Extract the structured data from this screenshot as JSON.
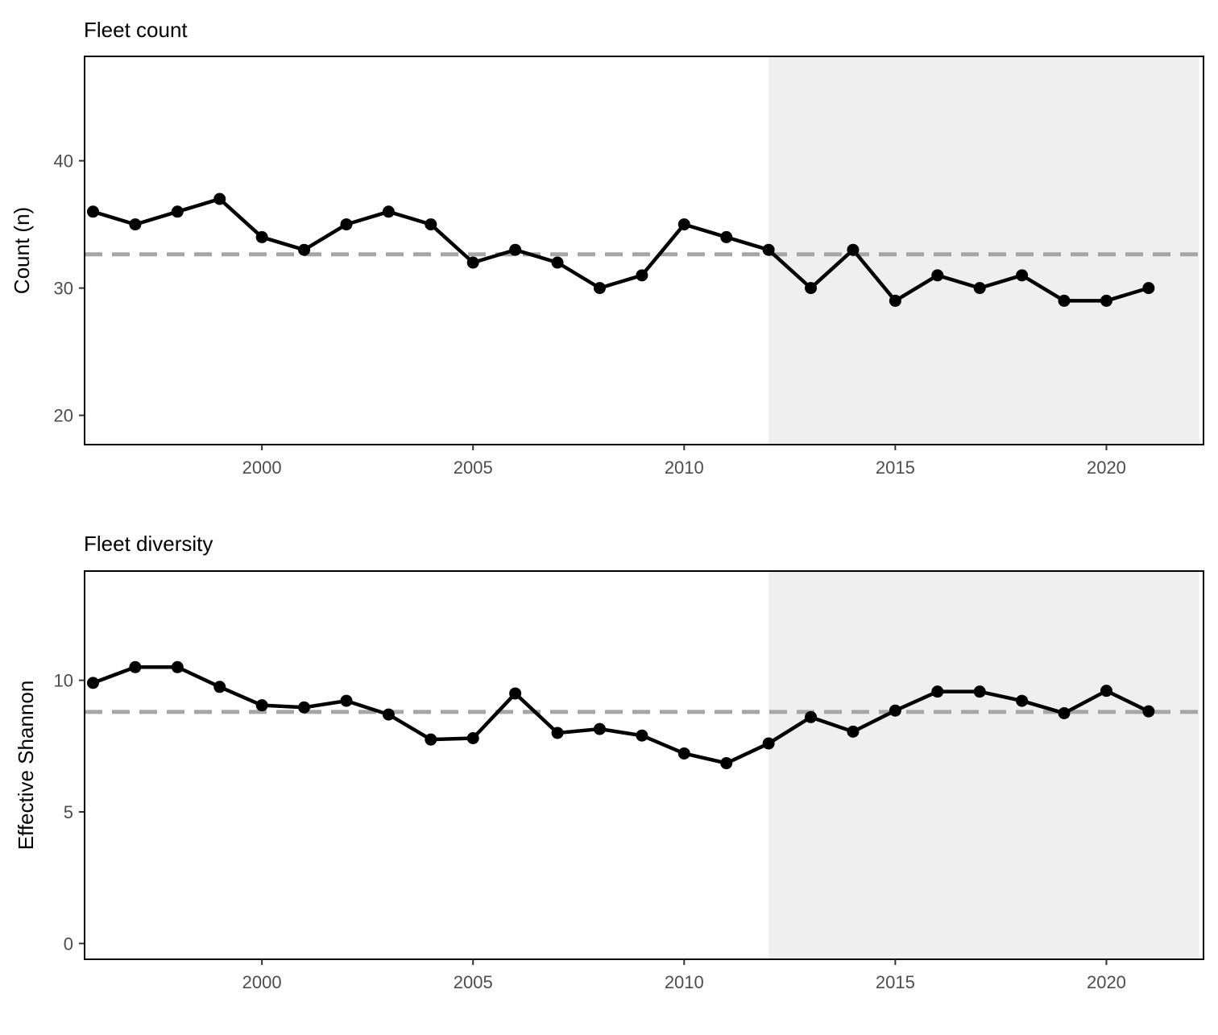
{
  "chart_data": [
    {
      "type": "line",
      "title": "Fleet count",
      "xlabel": "",
      "ylabel": "Count (n)",
      "xlim": [
        1995.8,
        2022.3
      ],
      "ylim": [
        17.7,
        48.2
      ],
      "xticks": [
        2000,
        2005,
        2010,
        2015,
        2020
      ],
      "yticks": [
        20,
        30,
        40
      ],
      "shaded_region": {
        "x_start": 2012,
        "x_end": 2022.2,
        "color": "#efefef"
      },
      "reference_line": {
        "y": 32.65,
        "style": "dashed",
        "color": "#a6a6a6"
      },
      "series": [
        {
          "x": [
            1996,
            1997,
            1998,
            1999,
            2000,
            2001,
            2002,
            2003,
            2004,
            2005,
            2006,
            2007,
            2008,
            2009,
            2010,
            2011,
            2012,
            2013,
            2014,
            2015,
            2016,
            2017,
            2018,
            2019,
            2020,
            2021
          ],
          "values": [
            36,
            35,
            36,
            37,
            34,
            33,
            35,
            36,
            35,
            32,
            33,
            32,
            30,
            31,
            35,
            34,
            33,
            30,
            33,
            29,
            31,
            30,
            31,
            29,
            29,
            30
          ],
          "color": "#000000"
        }
      ]
    },
    {
      "type": "line",
      "title": "Fleet diversity",
      "xlabel": "",
      "ylabel": "Effective Shannon",
      "xlim": [
        1995.8,
        2022.3
      ],
      "ylim": [
        -0.6,
        14.15
      ],
      "xticks": [
        2000,
        2005,
        2010,
        2015,
        2020
      ],
      "yticks": [
        0,
        5,
        10
      ],
      "shaded_region": {
        "x_start": 2012,
        "x_end": 2022.2,
        "color": "#efefef"
      },
      "reference_line": {
        "y": 8.8,
        "style": "dashed",
        "color": "#a6a6a6"
      },
      "series": [
        {
          "x": [
            1996,
            1997,
            1998,
            1999,
            2000,
            2001,
            2002,
            2003,
            2004,
            2005,
            2006,
            2007,
            2008,
            2009,
            2010,
            2011,
            2012,
            2013,
            2014,
            2015,
            2016,
            2017,
            2018,
            2019,
            2020,
            2021
          ],
          "values": [
            9.9,
            10.5,
            10.5,
            9.75,
            9.05,
            8.97,
            9.22,
            8.7,
            7.75,
            7.8,
            9.5,
            8.0,
            8.15,
            7.9,
            7.22,
            6.85,
            7.6,
            8.6,
            8.05,
            8.85,
            9.57,
            9.57,
            9.22,
            8.75,
            9.6,
            8.82
          ],
          "color": "#000000"
        }
      ]
    }
  ]
}
